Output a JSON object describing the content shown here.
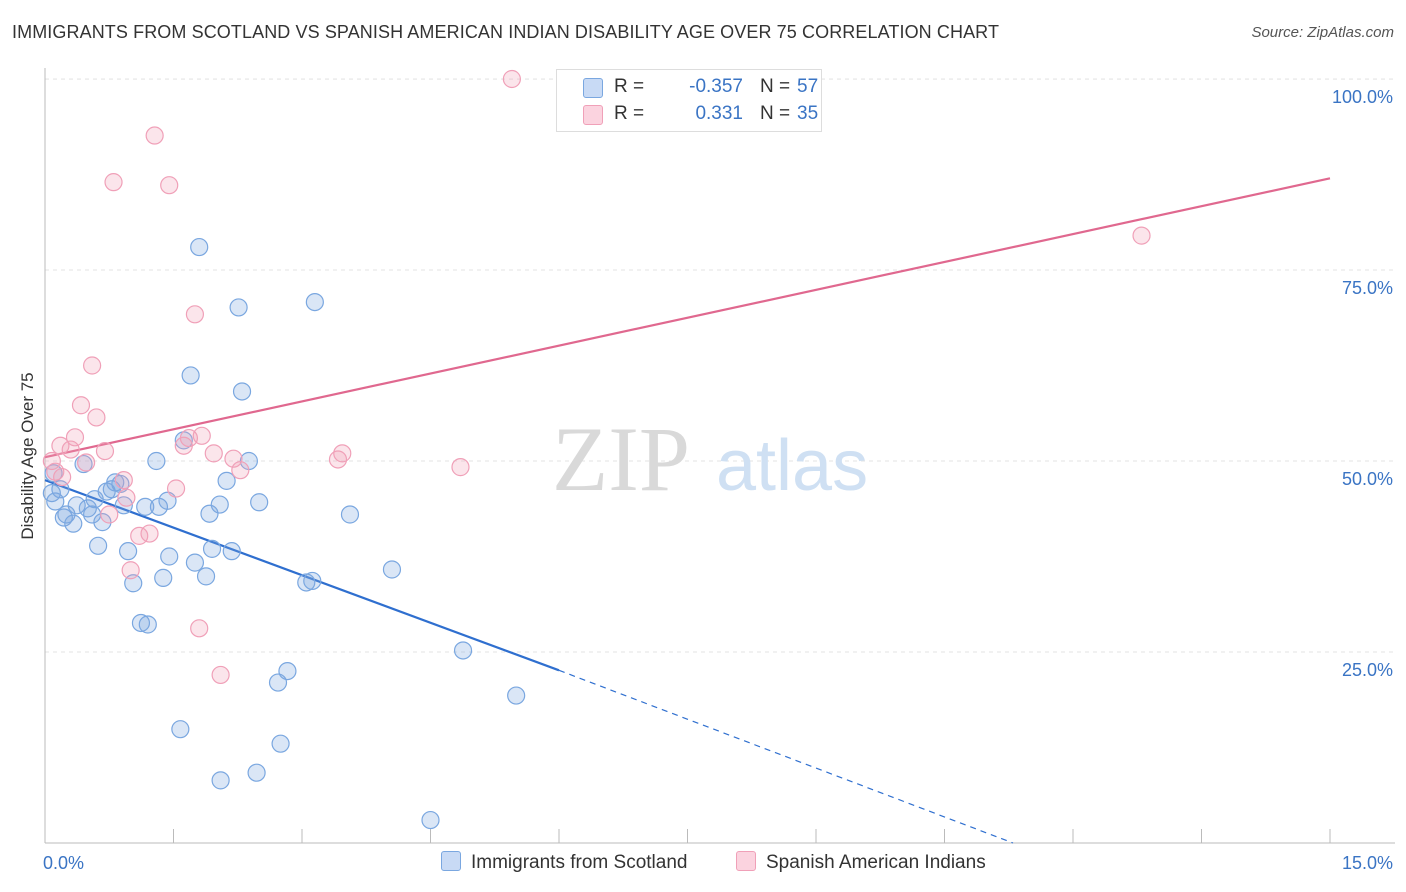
{
  "header": {
    "title": "IMMIGRANTS FROM SCOTLAND VS SPANISH AMERICAN INDIAN DISABILITY AGE OVER 75 CORRELATION CHART",
    "source": "Source: ZipAtlas.com"
  },
  "watermark": {
    "zip": "ZIP",
    "atlas": "atlas"
  },
  "legend": {
    "rows": [
      {
        "r_label": "R =",
        "r_value": "-0.357",
        "n_label": "N =",
        "n_value": "57",
        "color": "#7aa7e0"
      },
      {
        "r_label": "R =",
        "r_value": "0.331",
        "n_label": "N =",
        "n_value": "35",
        "color": "#f0a0b8"
      }
    ]
  },
  "chart_data": {
    "type": "scatter",
    "title": "IMMIGRANTS FROM SCOTLAND VS SPANISH AMERICAN INDIAN DISABILITY AGE OVER 75 CORRELATION CHART",
    "xlabel": "",
    "ylabel": "Disability Age Over 75",
    "xlim": [
      0,
      15
    ],
    "ylim": [
      0,
      102
    ],
    "x_tick_labels": [
      "0.0%",
      "15.0%"
    ],
    "y_tick_labels": [
      "25.0%",
      "50.0%",
      "75.0%",
      "100.0%"
    ],
    "y_ticks": [
      25,
      50,
      75,
      100
    ],
    "grid": true,
    "legend_position": "bottom-center",
    "series": [
      {
        "name": "Immigrants from Scotland",
        "color": "#7aa7e0",
        "line_color": "#2f6fcf",
        "trend": {
          "x": [
            0.0,
            6.0
          ],
          "y": [
            47.5,
            22.6
          ],
          "dashed_to": [
            11.3,
            0.0
          ]
        },
        "points": [
          [
            0.08,
            45.8
          ],
          [
            0.1,
            48.4
          ],
          [
            0.12,
            44.7
          ],
          [
            0.18,
            46.3
          ],
          [
            0.22,
            42.6
          ],
          [
            0.25,
            43.0
          ],
          [
            0.33,
            41.8
          ],
          [
            0.37,
            44.2
          ],
          [
            0.45,
            49.6
          ],
          [
            0.5,
            43.8
          ],
          [
            0.55,
            43.0
          ],
          [
            0.58,
            45.0
          ],
          [
            0.62,
            38.9
          ],
          [
            0.67,
            42.0
          ],
          [
            0.72,
            46.0
          ],
          [
            0.78,
            46.3
          ],
          [
            0.82,
            47.2
          ],
          [
            0.88,
            47.0
          ],
          [
            0.92,
            44.2
          ],
          [
            0.97,
            38.2
          ],
          [
            1.03,
            34.0
          ],
          [
            1.12,
            28.8
          ],
          [
            1.2,
            28.6
          ],
          [
            1.17,
            44.0
          ],
          [
            1.3,
            50.0
          ],
          [
            1.33,
            44.0
          ],
          [
            1.38,
            34.7
          ],
          [
            1.43,
            44.8
          ],
          [
            1.45,
            37.5
          ],
          [
            1.58,
            14.9
          ],
          [
            1.62,
            52.7
          ],
          [
            1.7,
            61.2
          ],
          [
            1.75,
            36.7
          ],
          [
            1.8,
            78.0
          ],
          [
            1.88,
            34.9
          ],
          [
            1.92,
            43.1
          ],
          [
            1.95,
            38.5
          ],
          [
            2.04,
            44.3
          ],
          [
            2.05,
            8.2
          ],
          [
            2.12,
            47.4
          ],
          [
            2.18,
            38.2
          ],
          [
            2.26,
            70.1
          ],
          [
            2.3,
            59.1
          ],
          [
            2.38,
            50.0
          ],
          [
            2.47,
            9.2
          ],
          [
            2.5,
            44.6
          ],
          [
            2.72,
            21.0
          ],
          [
            2.75,
            13.0
          ],
          [
            2.83,
            22.5
          ],
          [
            3.05,
            34.1
          ],
          [
            3.12,
            34.3
          ],
          [
            3.15,
            70.8
          ],
          [
            3.56,
            43.0
          ],
          [
            4.05,
            35.8
          ],
          [
            4.5,
            3.0
          ],
          [
            4.88,
            25.2
          ],
          [
            5.5,
            19.3
          ]
        ]
      },
      {
        "name": "Spanish American Indians",
        "color": "#f0a0b8",
        "line_color": "#e0688f",
        "trend": {
          "x": [
            0.0,
            15.0
          ],
          "y": [
            50.5,
            87.0
          ]
        },
        "points": [
          [
            0.08,
            50.0
          ],
          [
            0.12,
            48.6
          ],
          [
            0.2,
            47.9
          ],
          [
            0.18,
            52.0
          ],
          [
            0.3,
            51.5
          ],
          [
            0.35,
            53.1
          ],
          [
            0.42,
            57.3
          ],
          [
            0.48,
            49.8
          ],
          [
            0.55,
            62.5
          ],
          [
            0.6,
            55.7
          ],
          [
            0.7,
            51.3
          ],
          [
            0.75,
            43.0
          ],
          [
            0.8,
            86.5
          ],
          [
            0.92,
            47.5
          ],
          [
            0.95,
            45.2
          ],
          [
            1.0,
            35.7
          ],
          [
            1.1,
            40.2
          ],
          [
            1.22,
            40.5
          ],
          [
            1.28,
            92.6
          ],
          [
            1.45,
            86.1
          ],
          [
            1.53,
            46.4
          ],
          [
            1.62,
            52.0
          ],
          [
            1.68,
            53.0
          ],
          [
            1.75,
            69.2
          ],
          [
            1.8,
            28.1
          ],
          [
            1.83,
            53.3
          ],
          [
            1.97,
            51.0
          ],
          [
            2.05,
            22.0
          ],
          [
            2.2,
            50.3
          ],
          [
            2.28,
            48.8
          ],
          [
            3.42,
            50.2
          ],
          [
            3.47,
            51.0
          ],
          [
            4.85,
            49.2
          ],
          [
            5.45,
            100.0
          ],
          [
            12.8,
            79.5
          ]
        ]
      }
    ]
  }
}
